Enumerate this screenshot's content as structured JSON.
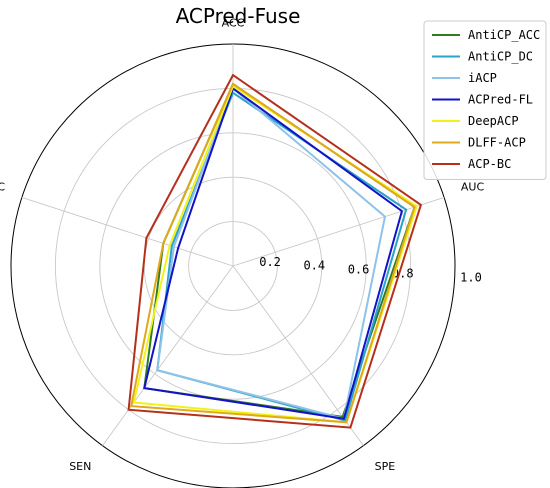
{
  "chart_data": {
    "type": "radar",
    "title": "ACPred-Fuse",
    "axes": [
      "ACC",
      "AUC",
      "SPE",
      "SEN",
      "MCC"
    ],
    "rlim": [
      0,
      1.0
    ],
    "r_ticks": [
      "0.2",
      "0.4",
      "0.6",
      "0.8",
      "1.0"
    ],
    "grid": true,
    "legend_position": "top-right",
    "series": [
      {
        "name": "AntiCP_ACC",
        "color": "#2e7d1f",
        "values": [
          0.82,
          0.86,
          0.84,
          0.68,
          0.33
        ]
      },
      {
        "name": "AntiCP_DC",
        "color": "#29a3c7",
        "values": [
          0.78,
          0.82,
          0.86,
          0.58,
          0.29
        ]
      },
      {
        "name": "iACP",
        "color": "#8ec2e8",
        "values": [
          0.8,
          0.72,
          0.85,
          0.58,
          0.28
        ]
      },
      {
        "name": "ACPred-FL",
        "color": "#1212c8",
        "values": [
          0.8,
          0.8,
          0.85,
          0.68,
          0.26
        ]
      },
      {
        "name": "DeepACP",
        "color": "#f2f21a",
        "values": [
          0.81,
          0.87,
          0.87,
          0.76,
          0.3
        ]
      },
      {
        "name": "DLFF-ACP",
        "color": "#e0a91c",
        "values": [
          0.82,
          0.86,
          0.87,
          0.78,
          0.33
        ]
      },
      {
        "name": "ACP-BC",
        "color": "#b5301c",
        "values": [
          0.86,
          0.89,
          0.9,
          0.8,
          0.41
        ]
      }
    ]
  }
}
